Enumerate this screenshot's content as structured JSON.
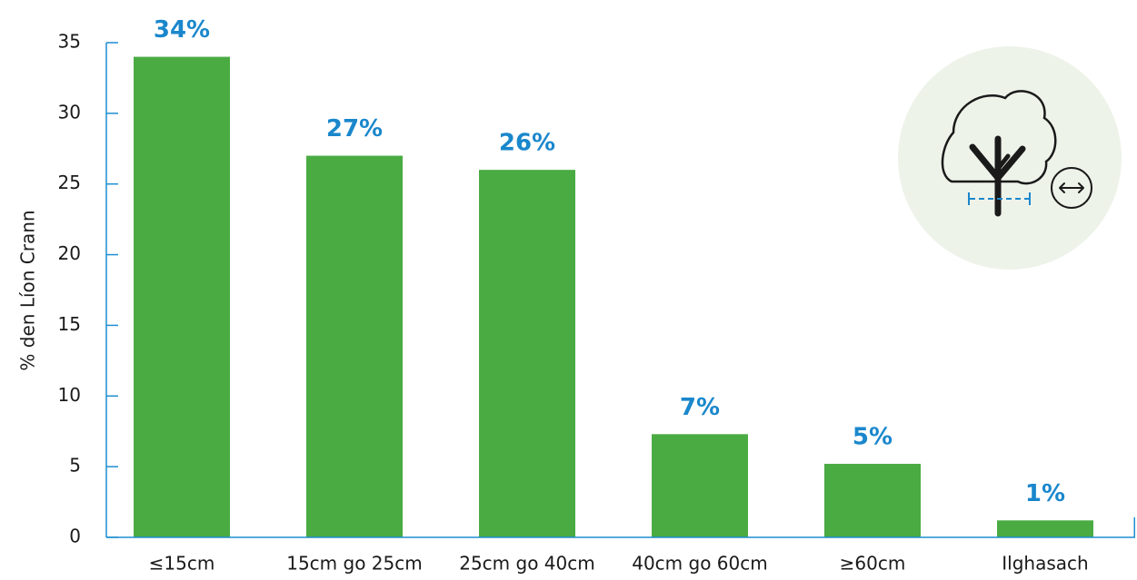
{
  "chart_data": {
    "type": "bar",
    "title": "",
    "xlabel": "",
    "ylabel": "% den Líon Crann",
    "categories": [
      "≤15cm",
      "15cm go 25cm",
      "25cm go 40cm",
      "40cm go 60cm",
      "≥60cm",
      "Ilghasach"
    ],
    "values": [
      34,
      27,
      26,
      7.3,
      5.2,
      1.2
    ],
    "data_labels": [
      "34%",
      "27%",
      "26%",
      "7%",
      "5%",
      "1%"
    ],
    "ylim": [
      0,
      35
    ],
    "yticks": [
      0,
      5,
      10,
      15,
      20,
      25,
      30,
      35
    ],
    "grid": false,
    "legend": "none"
  },
  "icon": {
    "name": "tree-diameter-icon"
  },
  "colors": {
    "bar": "#4aab43",
    "axis": "#1f8ed0",
    "data_label": "#1a87cc",
    "icon_circle": "#eef3ea",
    "icon_stroke": "#1a1a1a"
  }
}
